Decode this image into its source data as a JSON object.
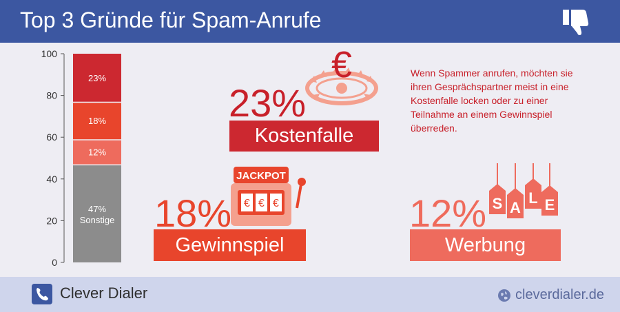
{
  "header": {
    "title": "Top 3 Gründe für Spam-Anrufe",
    "icon": "thumbs-down-icon"
  },
  "chart_data": {
    "type": "bar",
    "stacked": true,
    "ylim": [
      0,
      100
    ],
    "yticks": [
      "0",
      "20",
      "40",
      "60",
      "80",
      "100"
    ],
    "segments": [
      {
        "name": "Sonstige",
        "value": 47,
        "label": "47%",
        "color": "#8c8c8c"
      },
      {
        "name": "Werbung",
        "value": 12,
        "label": "12%",
        "color": "#ee6b5d"
      },
      {
        "name": "Gewinnspiel",
        "value": 18,
        "label": "18%",
        "color": "#e8452c"
      },
      {
        "name": "Kostenfalle",
        "value": 23,
        "label": "23%",
        "color": "#cc2830"
      }
    ]
  },
  "reasons": [
    {
      "percent": "23%",
      "label": "Kostenfalle",
      "icon": "euro-trap-icon"
    },
    {
      "percent": "18%",
      "label": "Gewinnspiel",
      "icon": "jackpot-slot-machine-icon",
      "sign": "JACKPOT",
      "reels": [
        "€",
        "€",
        "€"
      ]
    },
    {
      "percent": "12%",
      "label": "Werbung",
      "icon": "sale-tags-icon",
      "tags": [
        "S",
        "A",
        "L",
        "E"
      ]
    }
  ],
  "description": "Wenn Spammer anrufen, möchten sie ihren Gesprächspartner meist in eine Kostenfalle locken oder zu einer Teilnahme an einem Gewinnspiel überreden.",
  "footer": {
    "brand": "Clever Dialer",
    "brand_icon": "phone-icon",
    "site": "cleverdialer.de",
    "site_icon": "globe-icon"
  }
}
